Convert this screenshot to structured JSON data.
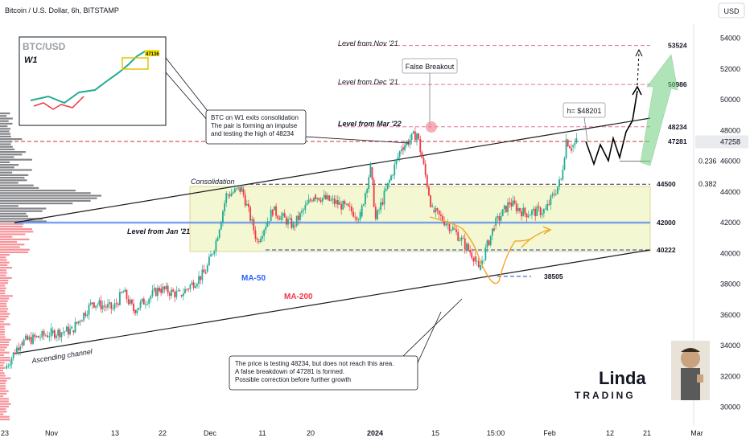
{
  "header": {
    "title": "Bitcoin / U.S. Dollar, 6h, BITSTAMP",
    "currency": "USD"
  },
  "chart_data": {
    "type": "candlestick",
    "symbol": "BTC/USD",
    "timeframe": "6h",
    "exchange": "BITSTAMP",
    "y_axis": {
      "ticks": [
        30000,
        32000,
        34000,
        36000,
        38000,
        40000,
        42000,
        44000,
        46000,
        48000,
        50000,
        52000,
        54000
      ],
      "ylim": [
        29600,
        56000
      ],
      "current_price": 47258
    },
    "x_axis": {
      "ticks": [
        "23",
        "Nov",
        "13",
        "22",
        "Dec",
        "11",
        "20",
        "2024",
        "15",
        "15:00",
        "Feb",
        "12",
        "21",
        "Mar"
      ]
    },
    "price_path": [
      [
        "Oct 23",
        32500
      ],
      [
        "Oct 26",
        34200
      ],
      [
        "Nov 1",
        34800
      ],
      [
        "Nov 5",
        35000
      ],
      [
        "Nov 9",
        36800
      ],
      [
        "Nov 13",
        36400
      ],
      [
        "Nov 15",
        37500
      ],
      [
        "Nov 17",
        36300
      ],
      [
        "Nov 22",
        37700
      ],
      [
        "Nov 26",
        37300
      ],
      [
        "Dec 1",
        38800
      ],
      [
        "Dec 3",
        40800
      ],
      [
        "Dec 5",
        43800
      ],
      [
        "Dec 8",
        44200
      ],
      [
        "Dec 11",
        40800
      ],
      [
        "Dec 14",
        42800
      ],
      [
        "Dec 18",
        41800
      ],
      [
        "Dec 22",
        43800
      ],
      [
        "Dec 27",
        43200
      ],
      [
        "Dec 31",
        42400
      ],
      [
        "Jan 2",
        45600
      ],
      [
        "Jan 3",
        42200
      ],
      [
        "Jan 8",
        46900
      ],
      [
        "Jan 11",
        47800
      ],
      [
        "Jan 12",
        46200
      ],
      [
        "Jan 14",
        42800
      ],
      [
        "Jan 18",
        41600
      ],
      [
        "Jan 22",
        39800
      ],
      [
        "Jan 23",
        38900
      ],
      [
        "Jan 26",
        41800
      ],
      [
        "Jan 29",
        43300
      ],
      [
        "Feb 1",
        42600
      ],
      [
        "Feb 5",
        42800
      ],
      [
        "Feb 8",
        44800
      ],
      [
        "Feb 9",
        47400
      ],
      [
        "Feb 10",
        46900
      ],
      [
        "Feb 11",
        47258
      ]
    ],
    "levels": [
      {
        "label": "Level from Nov '21",
        "price": 53524,
        "style": "dashed",
        "color": "#e57399"
      },
      {
        "label": "Level from Dec '21",
        "price": 50986,
        "style": "dashed",
        "color": "#e57399"
      },
      {
        "label": "Level from Mar '22",
        "price": 48234,
        "style": "dashed",
        "color": "#e57399"
      },
      {
        "label": "",
        "price": 47281,
        "style": "dashed",
        "color": "#d32f2f"
      },
      {
        "label": "0.236",
        "price": 46000,
        "style": "solid",
        "color": "#787b86"
      },
      {
        "label": "0.382",
        "price": 44500,
        "style": "dashed",
        "color": "#333333"
      },
      {
        "label": "Level from Jan '21",
        "price": 42000,
        "style": "solid",
        "color": "#5b8def"
      },
      {
        "label": "",
        "price": 40222,
        "style": "dashed",
        "color": "#1e40c8"
      },
      {
        "label": "",
        "price": 38505,
        "style": "dashed",
        "color": "#1e40c8"
      }
    ],
    "price_labels": [
      "53524",
      "50986",
      "48234",
      "47281",
      "44500",
      "42000",
      "40222",
      "38505"
    ],
    "consolidation": {
      "label": "Consolidation",
      "range": [
        40222,
        44500
      ]
    },
    "ascending_channel_label": "Ascending channel",
    "ma50_label": "MA-50",
    "ma200_label": "MA-200",
    "false_breakout_label": "False Breakout",
    "height_label": "h= $48201",
    "annotation_w1": [
      "BTC on W1 exits consolidation",
      "The pair is forming an impulse",
      "and testing the high of 48234"
    ],
    "annotation_bottom": [
      "The price is testing 48234, but does not reach this area.",
      "A false breakdown of 47281 is formed.",
      "Possible correction before further growth"
    ],
    "inset": {
      "title": "BTC/USD",
      "tf": "W1",
      "price": "47136"
    }
  },
  "brand": {
    "line1": "Linda",
    "line2": "TRADING"
  },
  "colors": {
    "up": "#22ab94",
    "down": "#f23645",
    "ma50": "#2962ff",
    "ma200": "#f23645",
    "fib": "#4caf50"
  }
}
